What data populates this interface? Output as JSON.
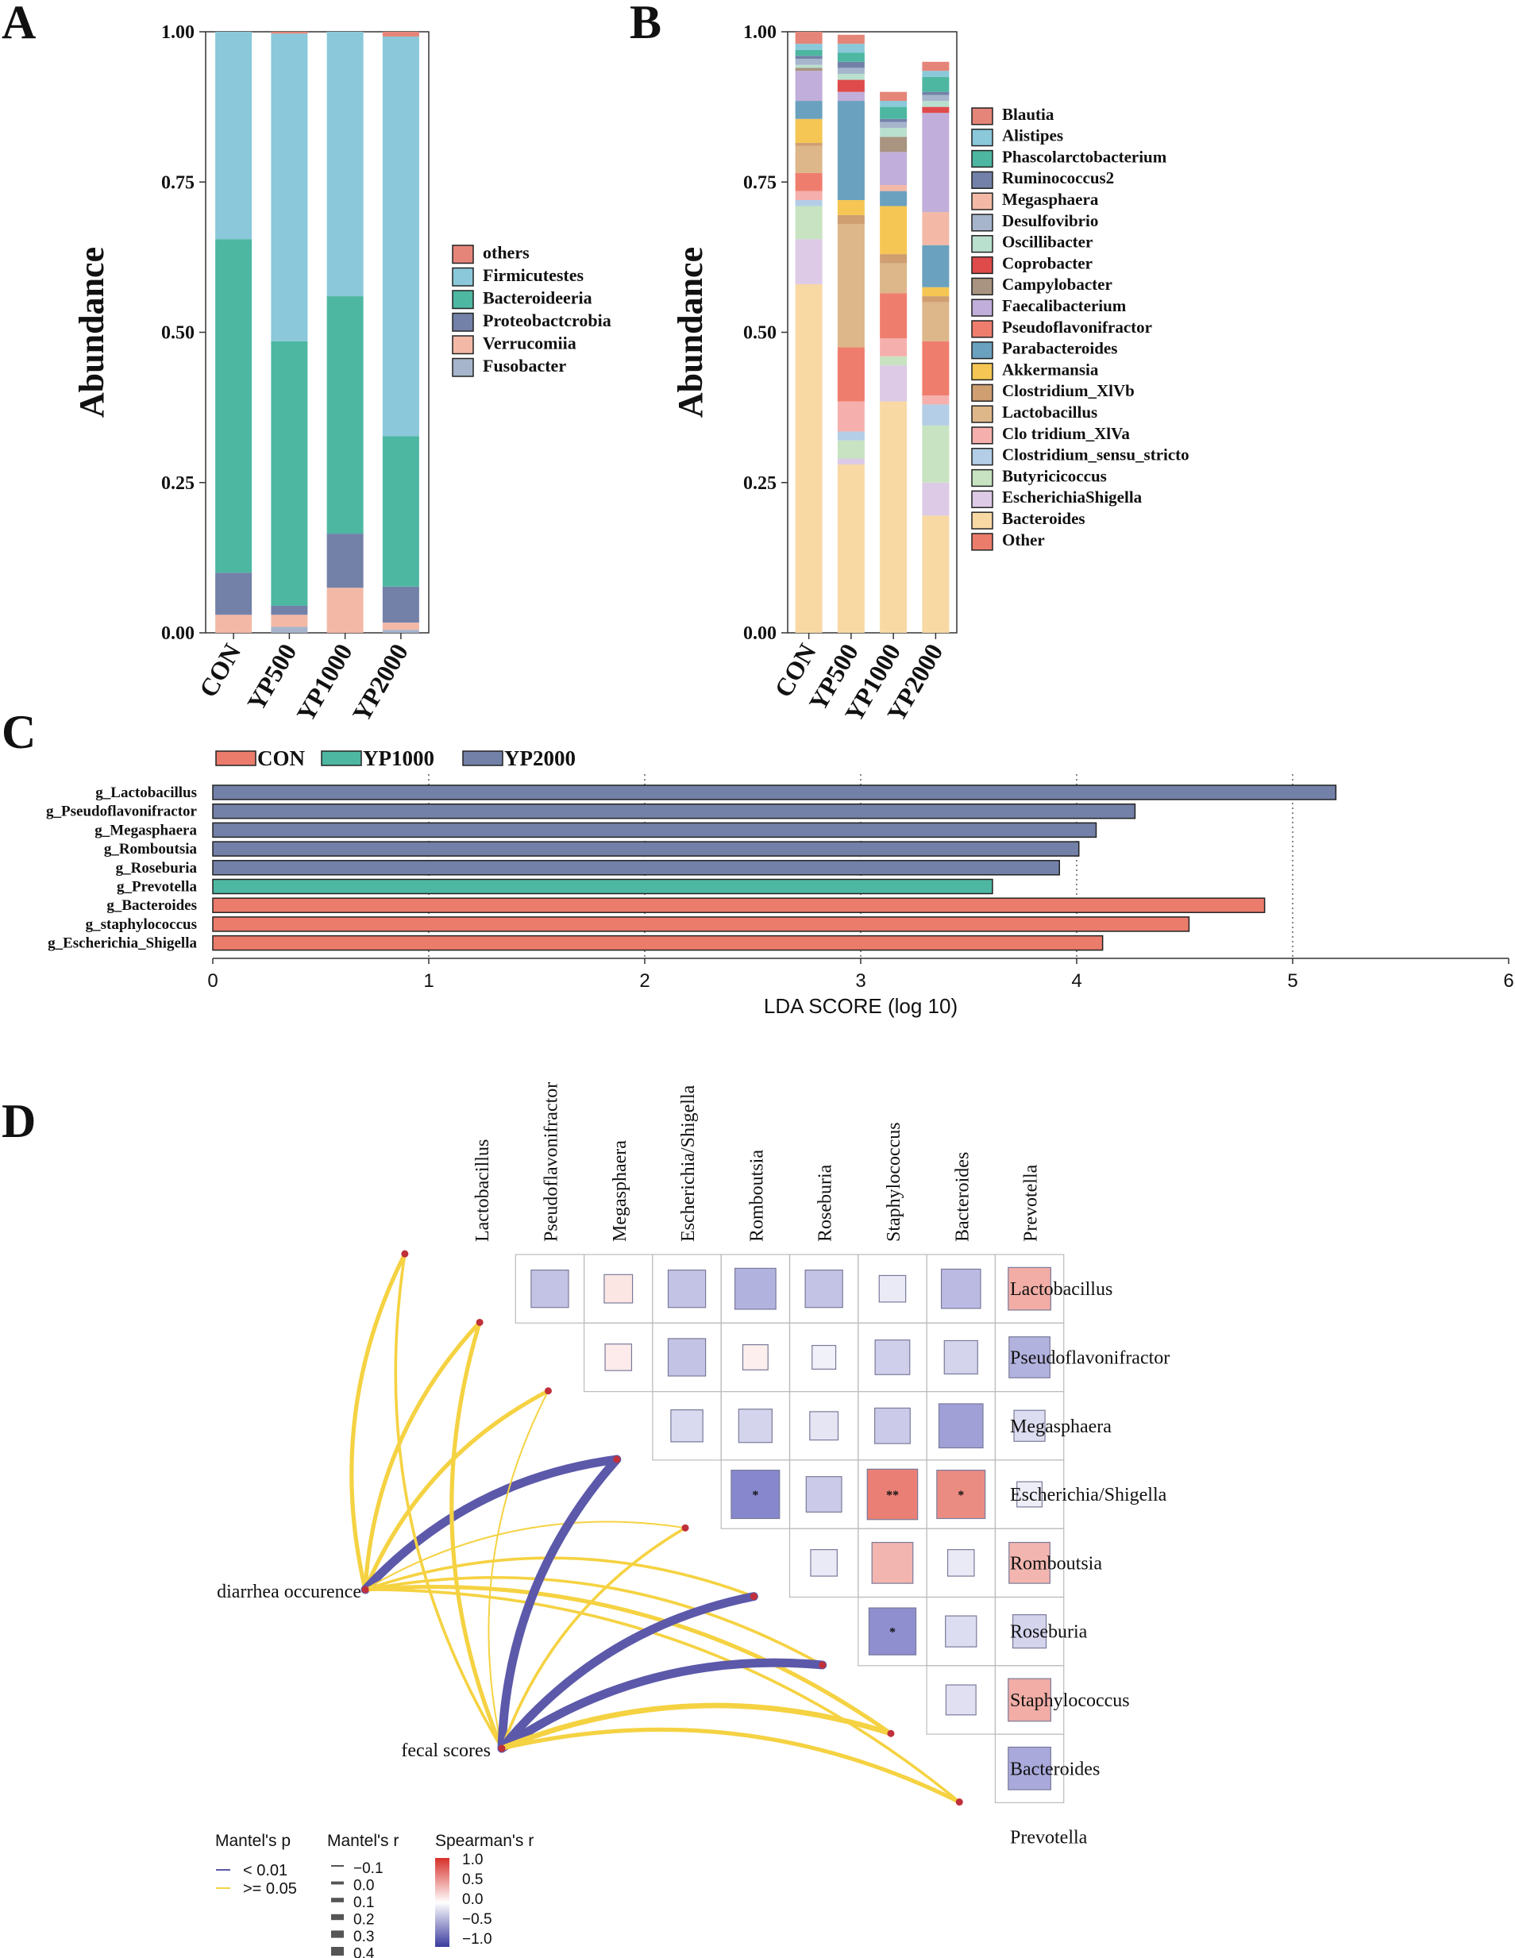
{
  "panel_labels": {
    "A": "A",
    "B": "B",
    "C": "C",
    "D": "D"
  },
  "colors": {
    "phylum": {
      "others": "#E58579",
      "Firmicutestes": "#8AC8DA",
      "Bacteroideeria": "#4DB7A2",
      "Proteobactcrobia": "#7381A8",
      "Verrucomiia": "#F3B9A6",
      "Fusobacter": "#A6B5CB"
    },
    "genus": {
      "Blautia": "#E58579",
      "Alistipes": "#8AC8DA",
      "Phascolarctobacterium": "#4DB7A2",
      "Ruminococcus2": "#7381A8",
      "Megasphaera": "#F3B9A6",
      "Desulfovibrio": "#A6B5CB",
      "Oscillibacter": "#B9DFCF",
      "Coprobacter": "#DF4A4A",
      "Campylobacter": "#A89480",
      "Faecalibacterium": "#C1AEDA",
      "Pseudoflavonifractor": "#EF7D6E",
      "Parabacteroides": "#6AA1BE",
      "Akkermansia": "#F5C653",
      "Clostridium_XlVb": "#CF9E71",
      "Lactobacillus": "#DDB689",
      "Clo tridium_XlVa": "#F5B0AD",
      "Clostridium_sensu_stricto": "#B3CEE6",
      "Butyricicoccus": "#C7E3C1",
      "EscherichiaShigella": "#DDCAE6",
      "Bacteroides": "#F8D9A4",
      "Other": "#EB7C6C"
    },
    "lda": {
      "CON": "#EB7C6C",
      "YP1000": "#4DB7A2",
      "YP2000": "#7381A8"
    },
    "mantel_sig": "#5C59AA",
    "mantel_ns": "#F5D242",
    "node": "#C0303A"
  },
  "chart_data": [
    {
      "id": "A",
      "type": "bar",
      "stacked": true,
      "ylabel": "Abundance",
      "ylim": [
        0,
        1
      ],
      "yticks": [
        "0.00",
        "0.25",
        "0.50",
        "0.75",
        "1.00"
      ],
      "categories": [
        "CON",
        "YP500",
        "YP1000",
        "YP2000"
      ],
      "legend_order": [
        "others",
        "Firmicutestes",
        "Bacteroideeria",
        "Proteobactcrobia",
        "Verrucomiia",
        "Fusobacter"
      ],
      "series": [
        {
          "name": "Fusobacter",
          "values": [
            0.0,
            0.01,
            0.0,
            0.005
          ]
        },
        {
          "name": "Verrucomiia",
          "values": [
            0.03,
            0.02,
            0.075,
            0.012
          ]
        },
        {
          "name": "Proteobactcrobia",
          "values": [
            0.07,
            0.015,
            0.09,
            0.06
          ]
        },
        {
          "name": "Bacteroideeria",
          "values": [
            0.555,
            0.44,
            0.395,
            0.25
          ]
        },
        {
          "name": "Firmicutestes",
          "values": [
            0.345,
            0.512,
            0.44,
            0.665
          ]
        },
        {
          "name": "others",
          "values": [
            0.0,
            0.003,
            0.0,
            0.008
          ]
        }
      ]
    },
    {
      "id": "B",
      "type": "bar",
      "stacked": true,
      "ylabel": "Abundance",
      "ylim": [
        0,
        1
      ],
      "yticks": [
        "0.00",
        "0.25",
        "0.50",
        "0.75",
        "1.00"
      ],
      "categories": [
        "CON",
        "YP500",
        "YP1000",
        "YP2000"
      ],
      "legend_order": [
        "Blautia",
        "Alistipes",
        "Phascolarctobacterium",
        "Ruminococcus2",
        "Megasphaera",
        "Desulfovibrio",
        "Oscillibacter",
        "Coprobacter",
        "Campylobacter",
        "Faecalibacterium",
        "Pseudoflavonifractor",
        "Parabacteroides",
        "Akkermansia",
        "Clostridium_XlVb",
        "Lactobacillus",
        "Clo tridium_XlVa",
        "Clostridium_sensu_stricto",
        "Butyricicoccus",
        "EscherichiaShigella",
        "Bacteroides",
        "Other"
      ],
      "series": [
        {
          "name": "Bacteroides",
          "values": [
            0.58,
            0.28,
            0.385,
            0.195
          ]
        },
        {
          "name": "EscherichiaShigella",
          "values": [
            0.075,
            0.01,
            0.06,
            0.055
          ]
        },
        {
          "name": "Butyricicoccus",
          "values": [
            0.055,
            0.03,
            0.015,
            0.095
          ]
        },
        {
          "name": "Clostridium_sensu_stricto",
          "values": [
            0.01,
            0.015,
            0.0,
            0.035
          ]
        },
        {
          "name": "Clo tridium_XlVa",
          "values": [
            0.015,
            0.05,
            0.03,
            0.015
          ]
        },
        {
          "name": "Pseudoflavonifractor",
          "values": [
            0.03,
            0.09,
            0.075,
            0.09
          ]
        },
        {
          "name": "Lactobacillus",
          "values": [
            0.045,
            0.205,
            0.05,
            0.065
          ]
        },
        {
          "name": "Clostridium_XlVb",
          "values": [
            0.005,
            0.015,
            0.015,
            0.01
          ]
        },
        {
          "name": "Akkermansia",
          "values": [
            0.04,
            0.025,
            0.08,
            0.015
          ]
        },
        {
          "name": "Parabacteroides",
          "values": [
            0.03,
            0.165,
            0.025,
            0.07
          ]
        },
        {
          "name": "Megasphaera",
          "values": [
            0.0,
            0.0,
            0.01,
            0.055
          ]
        },
        {
          "name": "Faecalibacterium",
          "values": [
            0.05,
            0.015,
            0.055,
            0.165
          ]
        },
        {
          "name": "Campylobacter",
          "values": [
            0.005,
            0.0,
            0.025,
            0.0
          ]
        },
        {
          "name": "Coprobacter",
          "values": [
            0.0,
            0.02,
            0.0,
            0.01
          ]
        },
        {
          "name": "Oscillibacter",
          "values": [
            0.005,
            0.01,
            0.015,
            0.01
          ]
        },
        {
          "name": "Desulfovibrio",
          "values": [
            0.01,
            0.01,
            0.01,
            0.01
          ]
        },
        {
          "name": "Ruminococcus2",
          "values": [
            0.005,
            0.01,
            0.005,
            0.005
          ]
        },
        {
          "name": "Phascolarctobacterium",
          "values": [
            0.01,
            0.015,
            0.02,
            0.025
          ]
        },
        {
          "name": "Alistipes",
          "values": [
            0.01,
            0.015,
            0.01,
            0.01
          ]
        },
        {
          "name": "Blautia",
          "values": [
            0.02,
            0.015,
            0.015,
            0.015
          ]
        },
        {
          "name": "Other",
          "values": [
            0.0,
            0.0,
            0.0,
            0.0
          ]
        }
      ]
    },
    {
      "id": "C",
      "type": "bar",
      "orientation": "horizontal",
      "xlabel": "LDA SCORE (log 10)",
      "xlim": [
        0,
        6
      ],
      "xticks": [
        "0",
        "1",
        "2",
        "3",
        "4",
        "5",
        "6"
      ],
      "legend": [
        "CON",
        "YP1000",
        "YP2000"
      ],
      "bars": [
        {
          "label": "g_Lactobacillus",
          "group": "YP2000",
          "value": 5.2
        },
        {
          "label": "g_Pseudoflavonifractor",
          "group": "YP2000",
          "value": 4.27
        },
        {
          "label": "g_Megasphaera",
          "group": "YP2000",
          "value": 4.09
        },
        {
          "label": "g_Romboutsia",
          "group": "YP2000",
          "value": 4.01
        },
        {
          "label": "g_Roseburia",
          "group": "YP2000",
          "value": 3.92
        },
        {
          "label": "g_Prevotella",
          "group": "YP1000",
          "value": 3.61
        },
        {
          "label": "g_Bacteroides",
          "group": "CON",
          "value": 4.87
        },
        {
          "label": "g_staphylococcus",
          "group": "CON",
          "value": 4.52
        },
        {
          "label": "g_Escherichia_Shigella",
          "group": "CON",
          "value": 4.12
        }
      ]
    },
    {
      "id": "D",
      "type": "heatmap",
      "taxa_labels": [
        "Lactobacillus",
        "Pseudoflavonifractor",
        "Megasphaera",
        "Escherichia/Shigella",
        "Romboutsia",
        "Roseburia",
        "Staphylococcus",
        "Bacteroides",
        "Prevotella"
      ],
      "env_labels": [
        "diarrhea occurence",
        "fecal scores"
      ],
      "cells": [
        {
          "row": 0,
          "col": 1,
          "r": -0.35,
          "sig": ""
        },
        {
          "row": 0,
          "col": 2,
          "r": 0.15,
          "sig": ""
        },
        {
          "row": 0,
          "col": 3,
          "r": -0.35,
          "sig": ""
        },
        {
          "row": 0,
          "col": 4,
          "r": -0.45,
          "sig": ""
        },
        {
          "row": 0,
          "col": 5,
          "r": -0.35,
          "sig": ""
        },
        {
          "row": 0,
          "col": 6,
          "r": -0.12,
          "sig": ""
        },
        {
          "row": 0,
          "col": 7,
          "r": -0.4,
          "sig": ""
        },
        {
          "row": 0,
          "col": 8,
          "r": 0.5,
          "sig": ""
        },
        {
          "row": 1,
          "col": 2,
          "r": 0.12,
          "sig": ""
        },
        {
          "row": 1,
          "col": 3,
          "r": -0.35,
          "sig": ""
        },
        {
          "row": 1,
          "col": 4,
          "r": 0.1,
          "sig": ""
        },
        {
          "row": 1,
          "col": 5,
          "r": -0.08,
          "sig": ""
        },
        {
          "row": 1,
          "col": 6,
          "r": -0.28,
          "sig": ""
        },
        {
          "row": 1,
          "col": 7,
          "r": -0.25,
          "sig": ""
        },
        {
          "row": 1,
          "col": 8,
          "r": -0.45,
          "sig": ""
        },
        {
          "row": 2,
          "col": 3,
          "r": -0.22,
          "sig": ""
        },
        {
          "row": 2,
          "col": 4,
          "r": -0.25,
          "sig": ""
        },
        {
          "row": 2,
          "col": 5,
          "r": -0.15,
          "sig": ""
        },
        {
          "row": 2,
          "col": 6,
          "r": -0.3,
          "sig": ""
        },
        {
          "row": 2,
          "col": 7,
          "r": -0.55,
          "sig": ""
        },
        {
          "row": 2,
          "col": 8,
          "r": -0.2,
          "sig": ""
        },
        {
          "row": 3,
          "col": 4,
          "r": -0.7,
          "sig": "*"
        },
        {
          "row": 3,
          "col": 5,
          "r": -0.3,
          "sig": ""
        },
        {
          "row": 3,
          "col": 6,
          "r": 0.78,
          "sig": "**"
        },
        {
          "row": 3,
          "col": 7,
          "r": 0.7,
          "sig": "*"
        },
        {
          "row": 3,
          "col": 8,
          "r": -0.1,
          "sig": ""
        },
        {
          "row": 4,
          "col": 5,
          "r": -0.12,
          "sig": ""
        },
        {
          "row": 4,
          "col": 6,
          "r": 0.45,
          "sig": ""
        },
        {
          "row": 4,
          "col": 7,
          "r": -0.12,
          "sig": ""
        },
        {
          "row": 4,
          "col": 8,
          "r": 0.45,
          "sig": ""
        },
        {
          "row": 5,
          "col": 6,
          "r": -0.65,
          "sig": "*"
        },
        {
          "row": 5,
          "col": 7,
          "r": -0.2,
          "sig": ""
        },
        {
          "row": 5,
          "col": 8,
          "r": -0.25,
          "sig": ""
        },
        {
          "row": 6,
          "col": 7,
          "r": -0.18,
          "sig": ""
        },
        {
          "row": 6,
          "col": 8,
          "r": 0.5,
          "sig": ""
        },
        {
          "row": 7,
          "col": 8,
          "r": -0.5,
          "sig": ""
        }
      ],
      "links": [
        {
          "env": 0,
          "taxon": 0,
          "p": "ns",
          "r": 0.2
        },
        {
          "env": 0,
          "taxon": 1,
          "p": "ns",
          "r": 0.2
        },
        {
          "env": 0,
          "taxon": 2,
          "p": "ns",
          "r": 0.2
        },
        {
          "env": 0,
          "taxon": 3,
          "p": "sig",
          "r": 0.4
        },
        {
          "env": 0,
          "taxon": 4,
          "p": "ns",
          "r": 0.0
        },
        {
          "env": 0,
          "taxon": 5,
          "p": "ns",
          "r": 0.1
        },
        {
          "env": 0,
          "taxon": 6,
          "p": "ns",
          "r": 0.1
        },
        {
          "env": 0,
          "taxon": 7,
          "p": "ns",
          "r": 0.2
        },
        {
          "env": 0,
          "taxon": 8,
          "p": "ns",
          "r": 0.1
        },
        {
          "env": 1,
          "taxon": 0,
          "p": "ns",
          "r": 0.1
        },
        {
          "env": 1,
          "taxon": 1,
          "p": "ns",
          "r": 0.2
        },
        {
          "env": 1,
          "taxon": 2,
          "p": "ns",
          "r": 0.0
        },
        {
          "env": 1,
          "taxon": 3,
          "p": "sig",
          "r": 0.4
        },
        {
          "env": 1,
          "taxon": 4,
          "p": "ns",
          "r": 0.1
        },
        {
          "env": 1,
          "taxon": 5,
          "p": "sig",
          "r": 0.4
        },
        {
          "env": 1,
          "taxon": 6,
          "p": "sig",
          "r": 0.4
        },
        {
          "env": 1,
          "taxon": 7,
          "p": "ns",
          "r": 0.3
        },
        {
          "env": 1,
          "taxon": 8,
          "p": "ns",
          "r": 0.2
        }
      ],
      "legend": {
        "mantel_p_title": "Mantel's p",
        "mantel_p_items": [
          "< 0.01",
          ">= 0.05"
        ],
        "mantel_r_title": "Mantel's r",
        "mantel_r_items": [
          "−0.1",
          "0.0",
          "0.1",
          "0.2",
          "0.3",
          "0.4"
        ],
        "spearman_title": "Spearman's r",
        "spearman_ticks": [
          "1.0",
          "0.5",
          "0.0",
          "−0.5",
          "−1.0"
        ]
      }
    }
  ]
}
